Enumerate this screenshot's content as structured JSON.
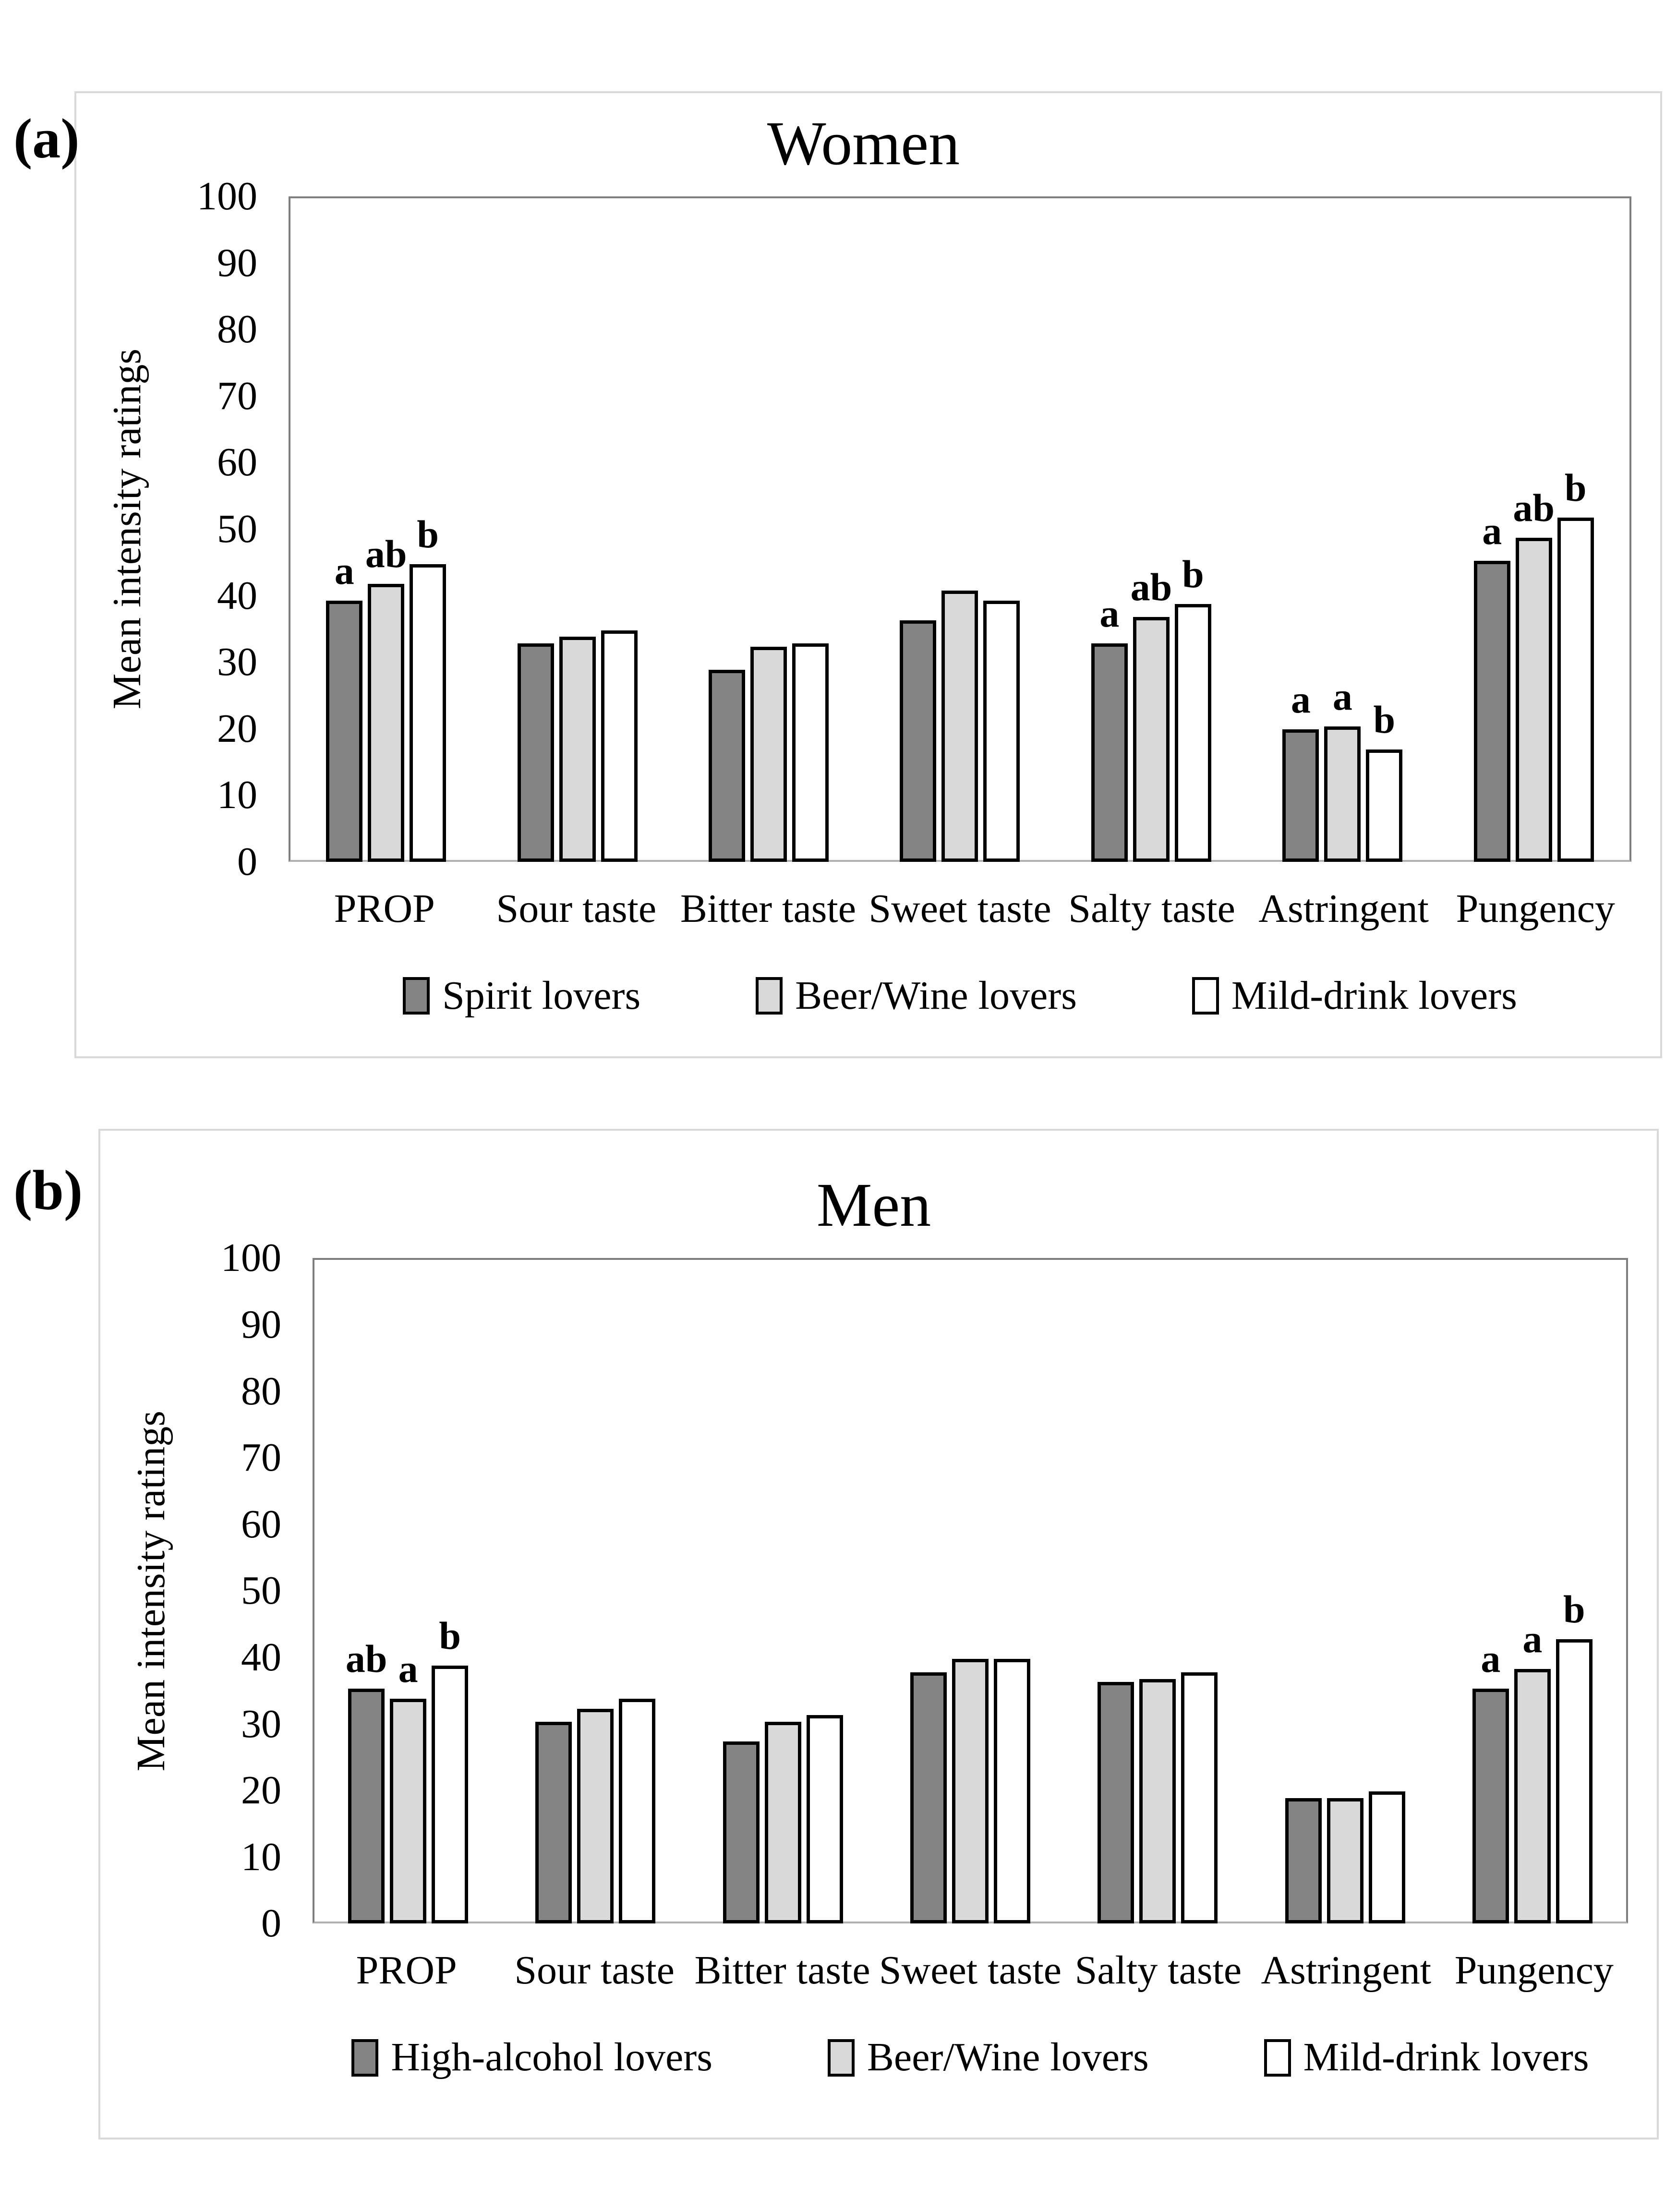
{
  "figure": {
    "background": "#ffffff",
    "panel_border_color": "#d9d9d9",
    "plot_border_color": "#7f7f7f",
    "baseline_color": "#b0b0b0"
  },
  "chart_data": [
    {
      "panel_tag": "(a)",
      "type": "bar",
      "title": "Women",
      "xlabel": "",
      "ylabel": "Mean intensity ratings",
      "ylim": [
        0,
        100
      ],
      "ytick_step": 10,
      "grid": false,
      "legend_position": "bottom",
      "categories": [
        "PROP",
        "Sour taste",
        "Bitter taste",
        "Sweet taste",
        "Salty taste",
        "Astringent",
        "Pungency"
      ],
      "series": [
        {
          "name": "Spirit lovers",
          "color": "#848484",
          "values": [
            39.5,
            33,
            29,
            36.5,
            33,
            20,
            45.5
          ],
          "letters": [
            "a",
            "",
            "",
            "",
            "a",
            "a",
            "a"
          ]
        },
        {
          "name": "Beer/Wine lovers",
          "color": "#d9d9d9",
          "values": [
            42,
            34,
            32.5,
            41,
            37,
            20.5,
            49
          ],
          "letters": [
            "ab",
            "",
            "",
            "",
            "ab",
            "a",
            "ab"
          ]
        },
        {
          "name": "Mild-drink lovers",
          "color": "#ffffff",
          "values": [
            45,
            35,
            33,
            39.5,
            39,
            17,
            52
          ],
          "letters": [
            "b",
            "",
            "",
            "",
            "b",
            "b",
            "b"
          ]
        }
      ]
    },
    {
      "panel_tag": "(b)",
      "type": "bar",
      "title": "Men",
      "xlabel": "",
      "ylabel": "Mean intensity ratings",
      "ylim": [
        0,
        100
      ],
      "ytick_step": 10,
      "grid": false,
      "legend_position": "bottom",
      "categories": [
        "PROP",
        "Sour taste",
        "Bitter taste",
        "Sweet taste",
        "Salty taste",
        "Astringent",
        "Pungency"
      ],
      "series": [
        {
          "name": "High-alcohol lovers",
          "color": "#848484",
          "values": [
            35.5,
            30.5,
            27.5,
            38,
            36.5,
            19,
            35.5
          ],
          "letters": [
            "ab",
            "",
            "",
            "",
            "",
            "",
            "a"
          ]
        },
        {
          "name": "Beer/Wine lovers",
          "color": "#d9d9d9",
          "values": [
            34,
            32.5,
            30.5,
            40,
            37,
            19,
            38.5
          ],
          "letters": [
            "a",
            "",
            "",
            "",
            "",
            "",
            "a"
          ]
        },
        {
          "name": "Mild-drink lovers",
          "color": "#ffffff",
          "values": [
            39,
            34,
            31.5,
            40,
            38,
            20,
            43
          ],
          "letters": [
            "b",
            "",
            "",
            "",
            "",
            "",
            "b"
          ]
        }
      ]
    }
  ]
}
